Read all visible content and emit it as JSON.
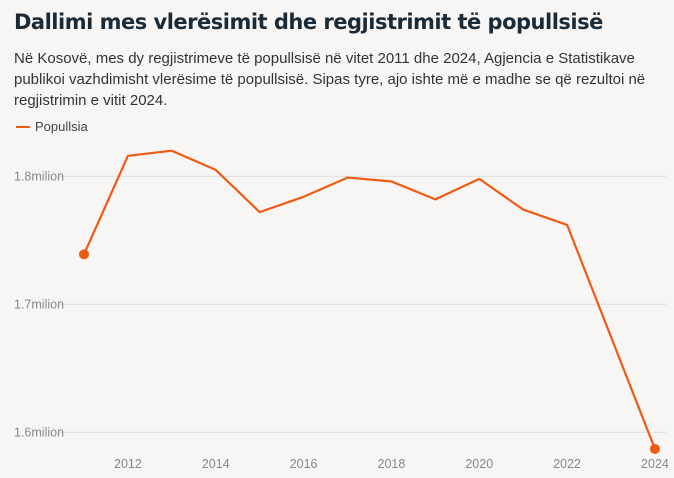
{
  "title": "Dallimi mes vlerësimit dhe regjistrimit të popullsisë",
  "subtitle": "Në Kosovë, mes dy regjistrimeve të popullsisë në vitet 2011 dhe 2024, Agjencia e Statistikave publikoi vazhdimisht vlerësime të popullsisë. Sipas tyre, ajo ishte më e madhe se që rezultoi në regjistrimin e vitit 2024.",
  "chart_data": {
    "type": "line",
    "title": "Dallimi mes vlerësimit dhe regjistrimit të popullsisë",
    "xlabel": "",
    "ylabel": "",
    "x": [
      2011,
      2012,
      2013,
      2014,
      2015,
      2016,
      2017,
      2018,
      2019,
      2020,
      2021,
      2022,
      2024
    ],
    "series": [
      {
        "name": "Popullsia",
        "color": "#f05a12",
        "values": [
          1.739,
          1.816,
          1.82,
          1.805,
          1.772,
          1.784,
          1.799,
          1.796,
          1.782,
          1.798,
          1.774,
          1.762,
          1.587
        ]
      }
    ],
    "highlighted_points": [
      2011,
      2024
    ],
    "xticks": [
      "2012",
      "2014",
      "2016",
      "2018",
      "2020",
      "2022",
      "2024"
    ],
    "yticks": [
      {
        "value": 1.6,
        "label": "1.6milion"
      },
      {
        "value": 1.7,
        "label": "1.7milion"
      },
      {
        "value": 1.8,
        "label": "1.8milion"
      }
    ],
    "xlim": [
      2011,
      2024
    ],
    "ylim": [
      1.58,
      1.83
    ],
    "grid": "horizontal",
    "legend": "top-left"
  }
}
